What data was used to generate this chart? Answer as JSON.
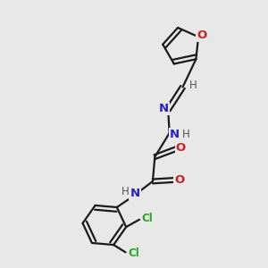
{
  "bg_color": "#e8e8e8",
  "bond_color": "#1a1a1a",
  "N_color": "#2222cc",
  "O_color": "#cc2222",
  "Cl_color": "#22aa22",
  "H_color": "#555555",
  "lw": 1.6,
  "figsize": [
    3.0,
    3.0
  ],
  "dpi": 100,
  "xlim": [
    0,
    10
  ],
  "ylim": [
    0,
    10
  ]
}
